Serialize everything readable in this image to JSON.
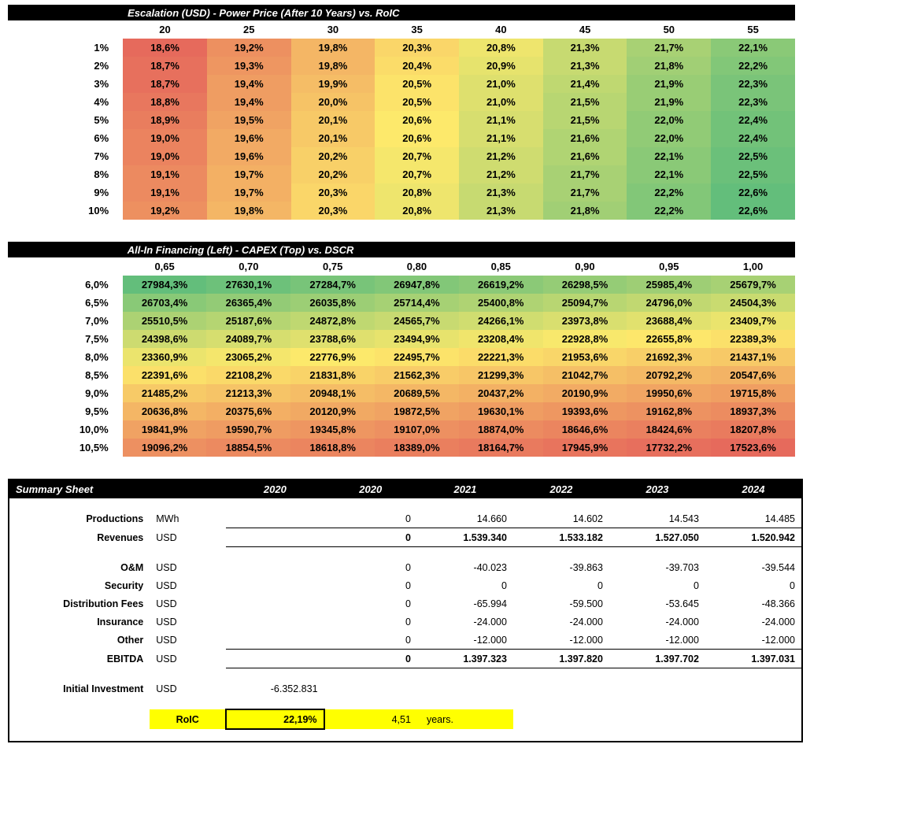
{
  "colors": {
    "heat_low": "#e66a5c",
    "heat_mid": "#fde96b",
    "heat_high": "#63be7b",
    "black": "#000000",
    "white": "#ffffff",
    "yellow": "#ffff00"
  },
  "table1": {
    "title": "Escalation (USD) - Power Price (After 10 Years) vs. RoIC",
    "col_heads": [
      "20",
      "25",
      "30",
      "35",
      "40",
      "45",
      "50",
      "55"
    ],
    "row_heads": [
      "1%",
      "2%",
      "3%",
      "4%",
      "5%",
      "6%",
      "7%",
      "8%",
      "9%",
      "10%"
    ],
    "cells": [
      [
        "18,6%",
        "19,2%",
        "19,8%",
        "20,3%",
        "20,8%",
        "21,3%",
        "21,7%",
        "22,1%"
      ],
      [
        "18,7%",
        "19,3%",
        "19,8%",
        "20,4%",
        "20,9%",
        "21,3%",
        "21,8%",
        "22,2%"
      ],
      [
        "18,7%",
        "19,4%",
        "19,9%",
        "20,5%",
        "21,0%",
        "21,4%",
        "21,9%",
        "22,3%"
      ],
      [
        "18,8%",
        "19,4%",
        "20,0%",
        "20,5%",
        "21,0%",
        "21,5%",
        "21,9%",
        "22,3%"
      ],
      [
        "18,9%",
        "19,5%",
        "20,1%",
        "20,6%",
        "21,1%",
        "21,5%",
        "22,0%",
        "22,4%"
      ],
      [
        "19,0%",
        "19,6%",
        "20,1%",
        "20,6%",
        "21,1%",
        "21,6%",
        "22,0%",
        "22,4%"
      ],
      [
        "19,0%",
        "19,6%",
        "20,2%",
        "20,7%",
        "21,2%",
        "21,6%",
        "22,1%",
        "22,5%"
      ],
      [
        "19,1%",
        "19,7%",
        "20,2%",
        "20,7%",
        "21,2%",
        "21,7%",
        "22,1%",
        "22,5%"
      ],
      [
        "19,1%",
        "19,7%",
        "20,3%",
        "20,8%",
        "21,3%",
        "21,7%",
        "22,2%",
        "22,6%"
      ],
      [
        "19,2%",
        "19,8%",
        "20,3%",
        "20,8%",
        "21,3%",
        "21,8%",
        "22,2%",
        "22,6%"
      ]
    ],
    "heat_min": 18.6,
    "heat_max": 22.6
  },
  "table2": {
    "title": "All-In Financing (Left)  - CAPEX (Top) vs. DSCR",
    "col_heads": [
      "0,65",
      "0,70",
      "0,75",
      "0,80",
      "0,85",
      "0,90",
      "0,95",
      "1,00"
    ],
    "row_heads": [
      "6,0%",
      "6,5%",
      "7,0%",
      "7,5%",
      "8,0%",
      "8,5%",
      "9,0%",
      "9,5%",
      "10,0%",
      "10,5%"
    ],
    "cells": [
      [
        "27984,3%",
        "27630,1%",
        "27284,7%",
        "26947,8%",
        "26619,2%",
        "26298,5%",
        "25985,4%",
        "25679,7%"
      ],
      [
        "26703,4%",
        "26365,4%",
        "26035,8%",
        "25714,4%",
        "25400,8%",
        "25094,7%",
        "24796,0%",
        "24504,3%"
      ],
      [
        "25510,5%",
        "25187,6%",
        "24872,8%",
        "24565,7%",
        "24266,1%",
        "23973,8%",
        "23688,4%",
        "23409,7%"
      ],
      [
        "24398,6%",
        "24089,7%",
        "23788,6%",
        "23494,9%",
        "23208,4%",
        "22928,8%",
        "22655,8%",
        "22389,3%"
      ],
      [
        "23360,9%",
        "23065,2%",
        "22776,9%",
        "22495,7%",
        "22221,3%",
        "21953,6%",
        "21692,3%",
        "21437,1%"
      ],
      [
        "22391,6%",
        "22108,2%",
        "21831,8%",
        "21562,3%",
        "21299,3%",
        "21042,7%",
        "20792,2%",
        "20547,6%"
      ],
      [
        "21485,2%",
        "21213,3%",
        "20948,1%",
        "20689,5%",
        "20437,2%",
        "20190,9%",
        "19950,6%",
        "19715,8%"
      ],
      [
        "20636,8%",
        "20375,6%",
        "20120,9%",
        "19872,5%",
        "19630,1%",
        "19393,6%",
        "19162,8%",
        "18937,3%"
      ],
      [
        "19841,9%",
        "19590,7%",
        "19345,8%",
        "19107,0%",
        "18874,0%",
        "18646,6%",
        "18424,6%",
        "18207,8%"
      ],
      [
        "19096,2%",
        "18854,5%",
        "18618,8%",
        "18389,0%",
        "18164,7%",
        "17945,9%",
        "17732,2%",
        "17523,6%"
      ]
    ],
    "heat_min": 17523.6,
    "heat_max": 27984.3
  },
  "summary": {
    "title": "Summary Sheet",
    "years": [
      "2020",
      "2020",
      "2021",
      "2022",
      "2023",
      "2024"
    ],
    "rows": [
      {
        "label": "Productions",
        "unit": "MWh",
        "vals": [
          "",
          "0",
          "14.660",
          "14.602",
          "14.543",
          "14.485"
        ],
        "cls": ""
      },
      {
        "label": "Revenues",
        "unit": "USD",
        "vals": [
          "",
          "0",
          "1.539.340",
          "1.533.182",
          "1.527.050",
          "1.520.942"
        ],
        "cls": "sumline"
      },
      {
        "spacer": true
      },
      {
        "label": "O&M",
        "unit": "USD",
        "vals": [
          "",
          "0",
          "-40.023",
          "-39.863",
          "-39.703",
          "-39.544"
        ],
        "cls": ""
      },
      {
        "label": "Security",
        "unit": "USD",
        "vals": [
          "",
          "0",
          "0",
          "0",
          "0",
          "0"
        ],
        "cls": ""
      },
      {
        "label": "Distribution Fees",
        "unit": "USD",
        "vals": [
          "",
          "0",
          "-65.994",
          "-59.500",
          "-53.645",
          "-48.366"
        ],
        "cls": ""
      },
      {
        "label": "Insurance",
        "unit": "USD",
        "vals": [
          "",
          "0",
          "-24.000",
          "-24.000",
          "-24.000",
          "-24.000"
        ],
        "cls": ""
      },
      {
        "label": "Other",
        "unit": "USD",
        "vals": [
          "",
          "0",
          "-12.000",
          "-12.000",
          "-12.000",
          "-12.000"
        ],
        "cls": ""
      },
      {
        "label": "EBITDA",
        "unit": "USD",
        "vals": [
          "",
          "0",
          "1.397.323",
          "1.397.820",
          "1.397.702",
          "1.397.031"
        ],
        "cls": "sumline"
      },
      {
        "spacer": true
      },
      {
        "label": "Initial Investment",
        "unit": "USD",
        "vals": [
          "-6.352.831",
          "",
          "",
          "",
          "",
          ""
        ],
        "cls": ""
      }
    ],
    "roic": {
      "label": "RoIC",
      "value": "22,19%",
      "payback": "4,51",
      "payback_unit": "years."
    }
  }
}
